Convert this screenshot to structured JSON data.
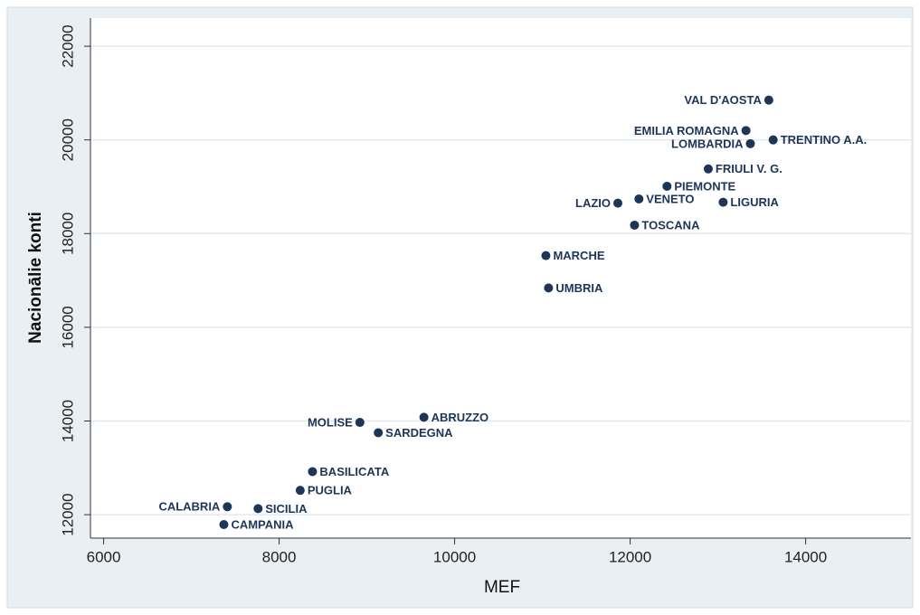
{
  "chart_data": {
    "type": "scatter",
    "x_label": "MEF",
    "y_label": "Nacionālie konti",
    "labels": [
      "VAL D'AOSTA",
      "EMILIA ROMAGNA",
      "LOMBARDIA",
      "TRENTINO A.A.",
      "FRIULI V. G.",
      "PIEMONTE",
      "VENETO",
      "LIGURIA",
      "LAZIO",
      "TOSCANA",
      "MARCHE",
      "UMBRIA",
      "ABRUZZO",
      "MOLISE",
      "SARDEGNA",
      "BASILICATA",
      "PUGLIA",
      "CALABRIA",
      "SICILIA",
      "CAMPANIA"
    ],
    "x": [
      13580,
      13320,
      13370,
      13630,
      12890,
      12420,
      12100,
      13060,
      11860,
      12050,
      11040,
      11070,
      9650,
      8920,
      9130,
      8380,
      8240,
      7410,
      7760,
      7370
    ],
    "values": [
      20850,
      20200,
      19920,
      20000,
      19380,
      19010,
      18740,
      18670,
      18650,
      18180,
      17530,
      16840,
      14080,
      13970,
      13750,
      12920,
      12520,
      12170,
      12130,
      11790
    ],
    "color": "#1d3557",
    "xlim": [
      5850,
      15200
    ],
    "xticks": [
      6000,
      8000,
      10000,
      12000,
      14000
    ],
    "ylim": [
      11500,
      22600
    ],
    "yticks": [
      12000,
      14000,
      16000,
      18000,
      20000,
      22000
    ],
    "grid": true
  }
}
